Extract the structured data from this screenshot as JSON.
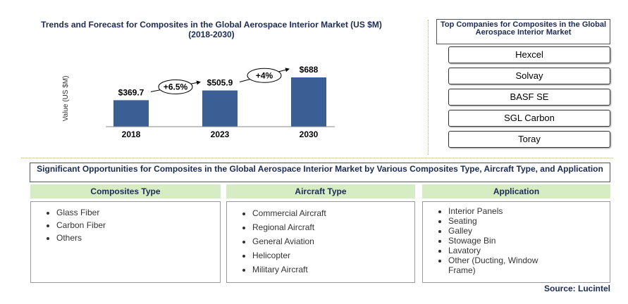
{
  "chart_data": {
    "type": "bar",
    "title": "Trends and Forecast for Composites in the Global Aerospace Interior Market (US $M) (2018-2030)",
    "y_label": "Value (US $M)",
    "categories": [
      "2018",
      "2023",
      "2030"
    ],
    "values": [
      369.7,
      505.9,
      688
    ],
    "value_labels": [
      "$369.7",
      "$505.9",
      "$688"
    ],
    "color": "#3a5f95",
    "annotations": [
      "+6.5%",
      "+4%"
    ]
  },
  "companies": {
    "title": "Top Companies for Composites in the Global Aerospace Interior Market",
    "items": [
      "Hexcel",
      "Solvay",
      "BASF SE",
      "SGL Carbon",
      "Toray"
    ]
  },
  "opportunities": {
    "title": "Significant Opportunities for Composites in the Global  Aerospace Interior Market by Various Composites Type, Aircraft Type, and Application",
    "columns": [
      {
        "title": "Composites  Type",
        "items": [
          "Glass Fiber",
          "Carbon Fiber",
          "Others"
        ]
      },
      {
        "title": "Aircraft Type",
        "items": [
          "Commercial Aircraft",
          "Regional Aircraft",
          "General Aviation",
          "Helicopter",
          "Military Aircraft"
        ]
      },
      {
        "title": "Application",
        "items": [
          "Interior Panels",
          "Seating",
          "Galley",
          "Stowage Bin",
          "Lavatory",
          "Other (Ducting, Window Frame)"
        ]
      }
    ]
  },
  "source": "Source: Lucintel"
}
